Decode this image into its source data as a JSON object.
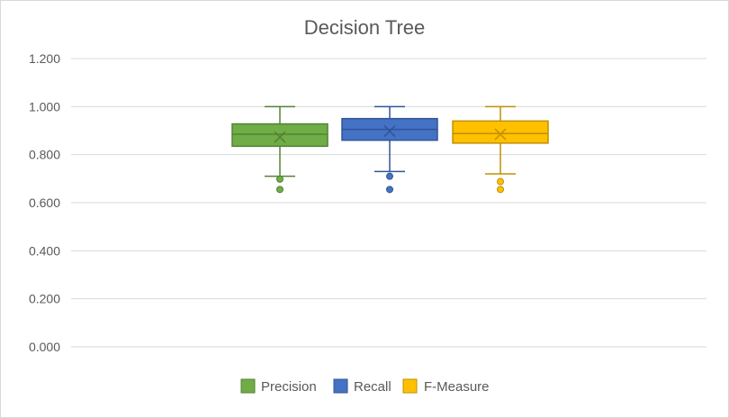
{
  "chart_data": {
    "type": "box",
    "title": "Decision Tree",
    "ylim": [
      0,
      1.2
    ],
    "y_ticks": [
      "0.000",
      "0.200",
      "0.400",
      "0.600",
      "0.800",
      "1.000",
      "1.200"
    ],
    "grid": "horizontal",
    "legend_position": "bottom",
    "series": [
      {
        "name": "Precision",
        "color": "#70ad47",
        "stroke": "#548235",
        "min": 0.71,
        "q1": 0.835,
        "median": 0.885,
        "mean": 0.873,
        "q3": 0.928,
        "max": 1.0,
        "outliers": [
          0.698,
          0.655
        ]
      },
      {
        "name": "Recall",
        "color": "#4472c4",
        "stroke": "#2f5597",
        "min": 0.73,
        "q1": 0.86,
        "median": 0.905,
        "mean": 0.898,
        "q3": 0.95,
        "max": 1.0,
        "outliers": [
          0.71,
          0.655
        ]
      },
      {
        "name": "F-Measure",
        "color": "#ffc000",
        "stroke": "#bf9000",
        "min": 0.72,
        "q1": 0.848,
        "median": 0.888,
        "mean": 0.885,
        "q3": 0.94,
        "max": 1.0,
        "outliers": [
          0.688,
          0.655
        ]
      }
    ]
  }
}
